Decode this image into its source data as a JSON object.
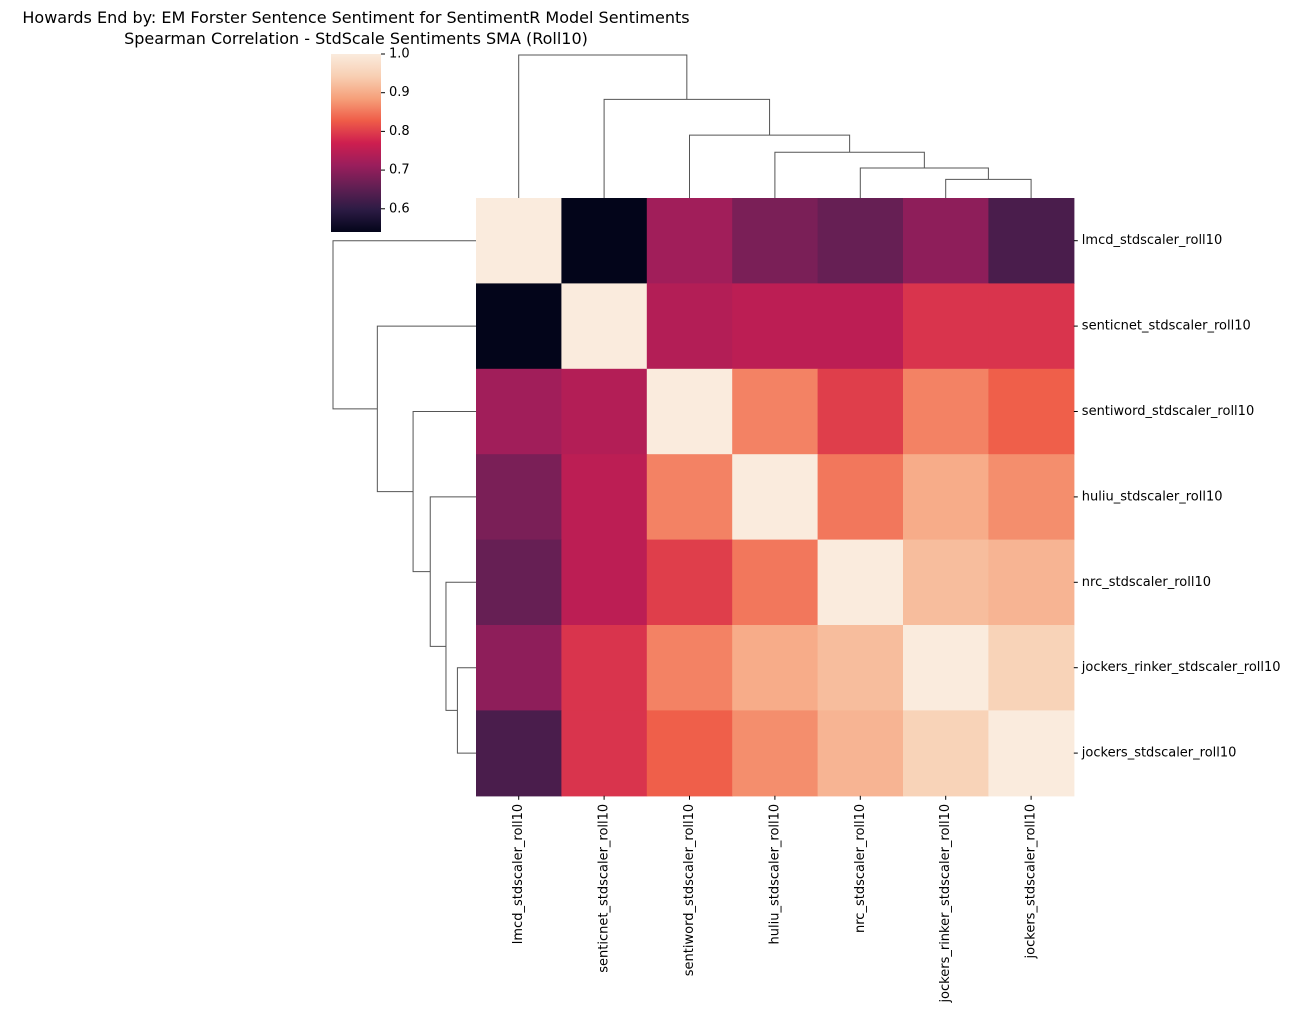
{
  "chart_data": {
    "type": "heatmap",
    "title": "Howards End by: EM Forster Sentence Sentiment for SentimentR Model Sentiments",
    "subtitle": "Spearman Correlation - StdScale Sentiments SMA (Roll10)",
    "rows": [
      "lmcd_stdscaler_roll10",
      "senticnet_stdscaler_roll10",
      "sentiword_stdscaler_roll10",
      "huliu_stdscaler_roll10",
      "nrc_stdscaler_roll10",
      "jockers_rinker_stdscaler_roll10",
      "jockers_stdscaler_roll10"
    ],
    "columns": [
      "lmcd_stdscaler_roll10",
      "senticnet_stdscaler_roll10",
      "sentiword_stdscaler_roll10",
      "huliu_stdscaler_roll10",
      "nrc_stdscaler_roll10",
      "jockers_rinker_stdscaler_roll10",
      "jockers_stdscaler_roll10"
    ],
    "values": [
      [
        1.0,
        0.54,
        0.72,
        0.68,
        0.66,
        0.7,
        0.63
      ],
      [
        0.54,
        1.0,
        0.74,
        0.75,
        0.75,
        0.79,
        0.79
      ],
      [
        0.72,
        0.74,
        1.0,
        0.86,
        0.8,
        0.86,
        0.83
      ],
      [
        0.68,
        0.75,
        0.86,
        1.0,
        0.85,
        0.9,
        0.87
      ],
      [
        0.66,
        0.75,
        0.8,
        0.85,
        1.0,
        0.92,
        0.91
      ],
      [
        0.7,
        0.79,
        0.86,
        0.9,
        0.92,
        1.0,
        0.95
      ],
      [
        0.63,
        0.79,
        0.83,
        0.87,
        0.91,
        0.95,
        1.0
      ]
    ],
    "colorbar": {
      "vmin": 0.54,
      "vmax": 1.0,
      "ticks": [
        1.0,
        0.9,
        0.8,
        0.7,
        0.6
      ],
      "tick_labels": [
        "1.0",
        "0.9",
        "0.8",
        "0.7",
        "0.6"
      ],
      "colormap": "rocket"
    },
    "dendrogram": {
      "order": [
        0,
        1,
        2,
        3,
        4,
        5,
        6
      ],
      "merges": [
        [
          5,
          6,
          0.13
        ],
        [
          4,
          7,
          0.21
        ],
        [
          3,
          8,
          0.32
        ],
        [
          2,
          9,
          0.44
        ],
        [
          1,
          10,
          0.69
        ],
        [
          0,
          11,
          1.0
        ]
      ]
    },
    "grid": false
  }
}
